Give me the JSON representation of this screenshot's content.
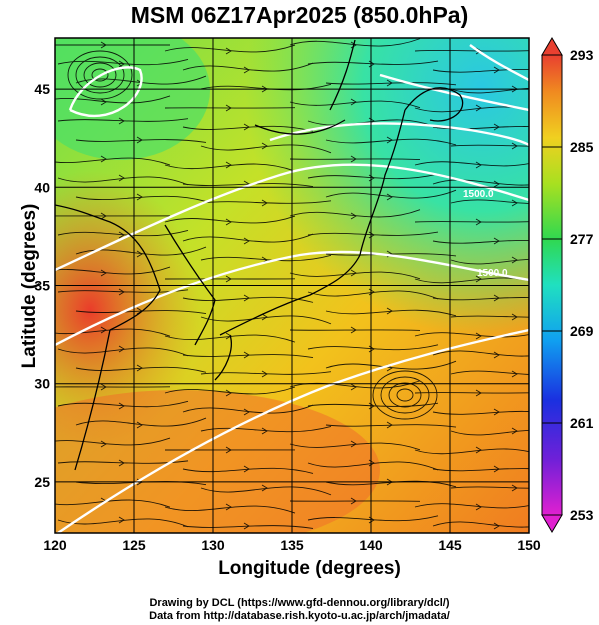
{
  "title": "MSM 06Z17Apr2025 (850.0hPa)",
  "xlabel": "Longitude (degrees)",
  "ylabel": "Latitude  (degrees)",
  "footer": {
    "line1": "Drawing by DCL (https://www.gfd-dennou.org/library/dcl/)",
    "line2": "Data from http://database.rish.kyoto-u.ac.jp/arch/jmadata/"
  },
  "map": {
    "lon_range": [
      120,
      150
    ],
    "lat_range": [
      22.4,
      47.6
    ],
    "x_ticks": [
      "120",
      "125",
      "130",
      "135",
      "140",
      "145",
      "150"
    ],
    "y_ticks": [
      "25",
      "30",
      "35",
      "40",
      "45"
    ],
    "contour_labels": [
      "1500.0",
      "1500.0"
    ],
    "colors": {
      "hot": "#e8442a",
      "warm": "#f59a1f",
      "mild": "#e6d21a",
      "cool": "#2fd05a",
      "cold": "#28d6c8",
      "contour": "#ffffff"
    }
  },
  "colorbar": {
    "min": 253,
    "max": 293,
    "labels": [
      "293",
      "285",
      "277",
      "269",
      "261",
      "253"
    ]
  }
}
